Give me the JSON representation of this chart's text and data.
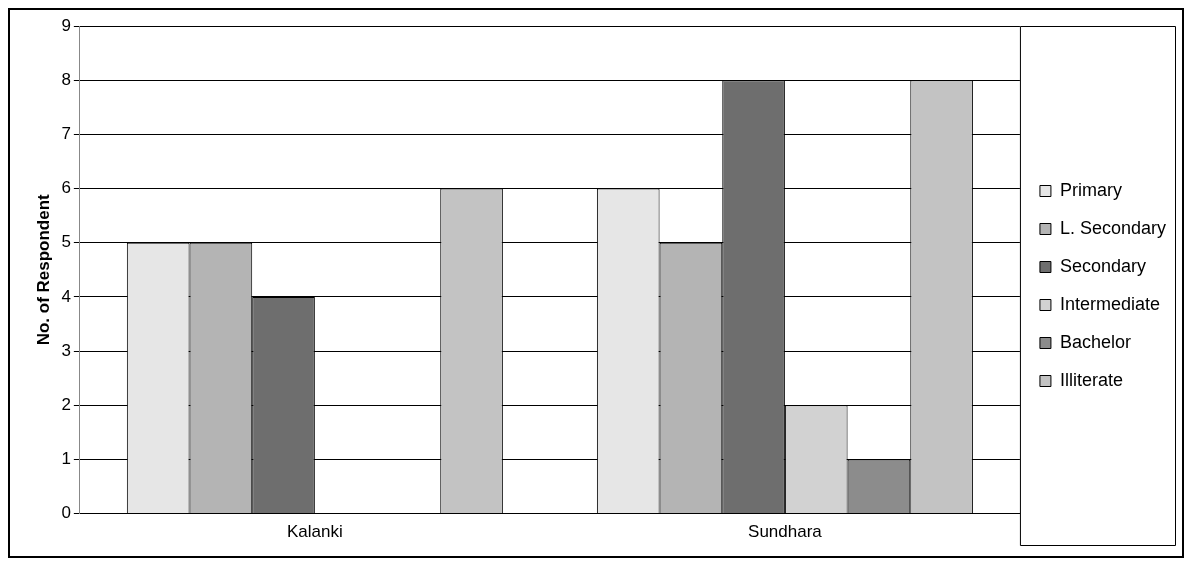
{
  "chart_data": {
    "type": "bar",
    "ylabel": "No. of Respondent",
    "categories": [
      "Kalanki",
      "Sundhara"
    ],
    "series": [
      {
        "name": "Primary",
        "color": "#e6e6e6",
        "values": [
          5,
          6
        ]
      },
      {
        "name": "L. Secondary",
        "color": "#b4b4b4",
        "values": [
          5,
          5
        ]
      },
      {
        "name": "Secondary",
        "color": "#6e6e6e",
        "values": [
          4,
          8
        ]
      },
      {
        "name": "Intermediate",
        "color": "#d2d2d2",
        "values": [
          0,
          2
        ]
      },
      {
        "name": "Bachelor",
        "color": "#8c8c8c",
        "values": [
          0,
          1
        ]
      },
      {
        "name": "Illiterate",
        "color": "#c3c3c3",
        "values": [
          6,
          8
        ]
      }
    ],
    "ylim": [
      0,
      9
    ],
    "yticks": [
      0,
      1,
      2,
      3,
      4,
      5,
      6,
      7,
      8,
      9
    ],
    "grid": "y",
    "legend": "right"
  }
}
